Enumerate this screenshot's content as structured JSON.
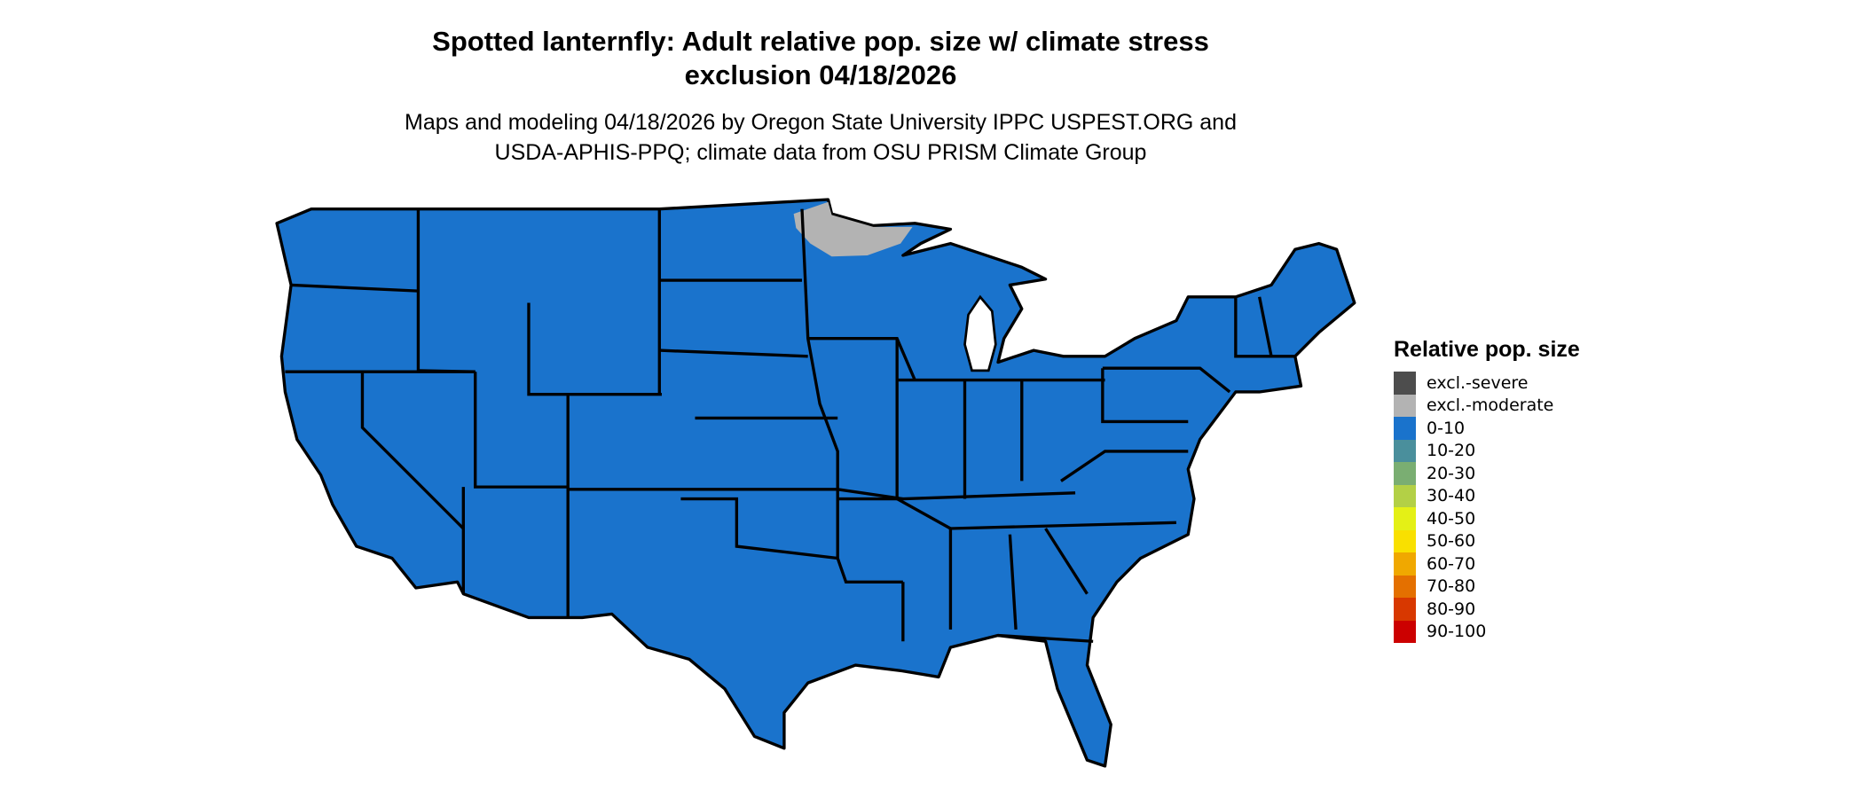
{
  "title": {
    "line1": "Spotted lanternfly: Adult relative pop. size w/ climate stress",
    "line2": "exclusion 04/18/2026"
  },
  "subtitle": {
    "line1": "Maps and modeling 04/18/2026 by Oregon State University IPPC USPEST.ORG and",
    "line2": "USDA-APHIS-PPQ; climate data from OSU PRISM Climate Group"
  },
  "map": {
    "region": "Contiguous United States",
    "dominant_class": "0-10",
    "dominant_color": "#1a73cc",
    "secondary_class": "excl.-moderate",
    "secondary_area": "northern Minnesota / Lake Superior shore",
    "border_color": "#000000"
  },
  "legend": {
    "title": "Relative pop. size",
    "items": [
      {
        "label": "excl.-severe",
        "color": "#4d4d4d"
      },
      {
        "label": "excl.-moderate",
        "color": "#b3b3b3"
      },
      {
        "label": "0-10",
        "color": "#1a73cc"
      },
      {
        "label": "10-20",
        "color": "#4a8f9c"
      },
      {
        "label": "20-30",
        "color": "#7aae72"
      },
      {
        "label": "30-40",
        "color": "#b3d046"
      },
      {
        "label": "40-50",
        "color": "#e4f016"
      },
      {
        "label": "50-60",
        "color": "#f9e000"
      },
      {
        "label": "60-70",
        "color": "#f0a800"
      },
      {
        "label": "70-80",
        "color": "#e47000"
      },
      {
        "label": "80-90",
        "color": "#d83800"
      },
      {
        "label": "90-100",
        "color": "#cc0000"
      }
    ]
  }
}
